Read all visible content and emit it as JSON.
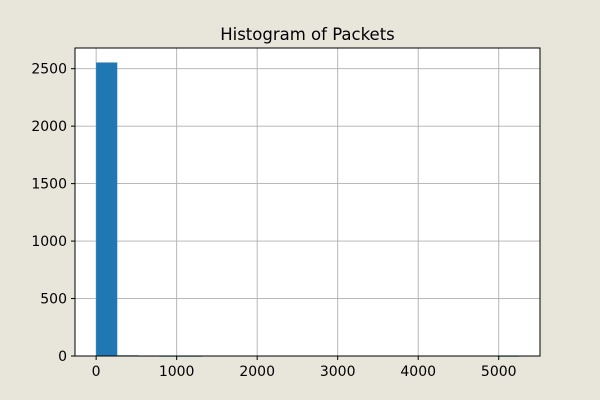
{
  "chart_data": {
    "type": "bar",
    "subtype": "histogram",
    "title": "Histogram of Packets",
    "xlabel": "",
    "ylabel": "",
    "bin_edges": [
      0,
      262.5,
      525,
      787.5,
      1050,
      1312.5,
      1575,
      1837.5,
      2100,
      2362.5,
      2625,
      2887.5,
      3150,
      3412.5,
      3675,
      3937.5,
      4200,
      4462.5,
      4725,
      4987.5,
      5250
    ],
    "counts": [
      2554,
      6,
      2,
      1,
      1,
      0,
      0,
      0,
      0,
      0,
      0,
      0,
      0,
      0,
      0,
      0,
      0,
      0,
      0,
      1
    ],
    "xlim": [
      -262.5,
      5512.5
    ],
    "ylim": [
      0,
      2680
    ],
    "xticks": [
      0,
      1000,
      2000,
      3000,
      4000,
      5000
    ],
    "yticks": [
      0,
      500,
      1000,
      1500,
      2000,
      2500
    ],
    "grid": true,
    "bar_color": "#1f77b4",
    "grid_color": "#b0b0b0",
    "background_color": "#e8e5da",
    "plot_background_color": "#ffffff"
  }
}
